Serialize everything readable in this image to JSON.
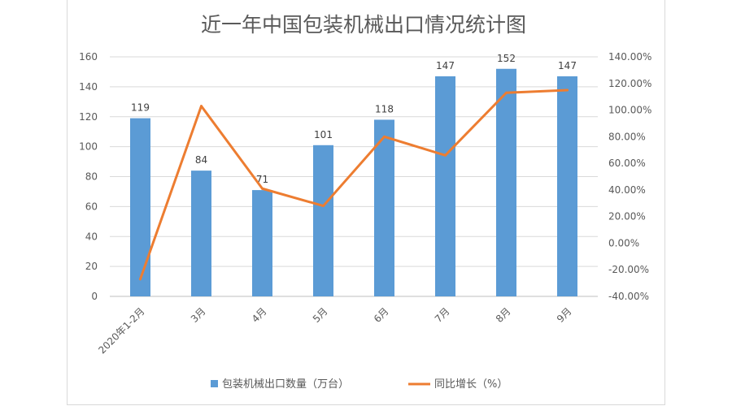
{
  "chart_data": {
    "type": "bar",
    "title": "近一年中国包装机械出口情况统计图",
    "categories": [
      "2020年1-2月",
      "3月",
      "4月",
      "5月",
      "6月",
      "7月",
      "8月",
      "9月"
    ],
    "series": [
      {
        "name": "包装机械出口数量（万台）",
        "type": "bar",
        "axis": "left",
        "color": "#5b9bd5",
        "values": [
          119,
          84,
          71,
          101,
          118,
          147,
          152,
          147
        ],
        "data_labels": [
          "119",
          "84",
          "71",
          "101",
          "118",
          "147",
          "152",
          "147"
        ]
      },
      {
        "name": "同比增长（%）",
        "type": "line",
        "axis": "right",
        "color": "#ed7d31",
        "values": [
          -27,
          103,
          41,
          28,
          80,
          66,
          113,
          115
        ]
      }
    ],
    "y_left": {
      "min": 0,
      "max": 160,
      "step": 20,
      "ticks": [
        "0",
        "20",
        "40",
        "60",
        "80",
        "100",
        "120",
        "140",
        "160"
      ]
    },
    "y_right": {
      "min": -40,
      "max": 140,
      "step": 20,
      "ticks": [
        "-40.00%",
        "-20.00%",
        "0.00%",
        "20.00%",
        "40.00%",
        "60.00%",
        "80.00%",
        "100.00%",
        "120.00%",
        "140.00%"
      ]
    },
    "grid": true,
    "legend_position": "bottom"
  }
}
